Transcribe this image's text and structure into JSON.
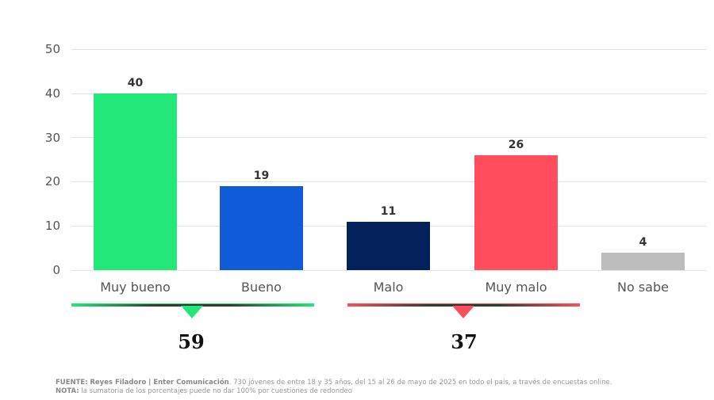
{
  "chart_data": {
    "type": "bar",
    "title": "",
    "xlabel": "",
    "ylabel": "",
    "ylim": [
      0,
      50
    ],
    "yticks": [
      0,
      10,
      20,
      30,
      40,
      50
    ],
    "grid": true,
    "categories": [
      "Muy bueno",
      "Bueno",
      "Malo",
      "Muy malo",
      "No sabe"
    ],
    "values": [
      40,
      19,
      11,
      26,
      4
    ],
    "colors": [
      "#23e879",
      "#0f5bd8",
      "#03205a",
      "#ff4d5e",
      "#bdbdbd"
    ],
    "groups": [
      {
        "name": "positive",
        "categories": [
          "Muy bueno",
          "Bueno"
        ],
        "total": 59,
        "color": "#23e879"
      },
      {
        "name": "negative",
        "categories": [
          "Malo",
          "Muy malo"
        ],
        "total": 37,
        "color": "#ff4d5e"
      }
    ]
  },
  "labels": {
    "yticks": [
      "50",
      "40",
      "30",
      "20",
      "10",
      "0"
    ],
    "bars": [
      "40",
      "19",
      "11",
      "26",
      "4"
    ],
    "categories": [
      "Muy bueno",
      "Bueno",
      "Malo",
      "Muy malo",
      "No sabe"
    ],
    "group_totals": [
      "59",
      "37"
    ]
  },
  "footnote": {
    "source_label": "FUENTE:",
    "source_name": "Reyes Filadoro | Enter Comunicación",
    "source_text": ". 730 jóvenes de entre 18 y 35 años, del 15 al 26 de mayo de 2025 en todo el país, a través de encuestas online.",
    "note_label": "NOTA:",
    "note_text": " la sumatoria de los porcentajes puede no dar 100% por cuestiones de redondeo"
  }
}
